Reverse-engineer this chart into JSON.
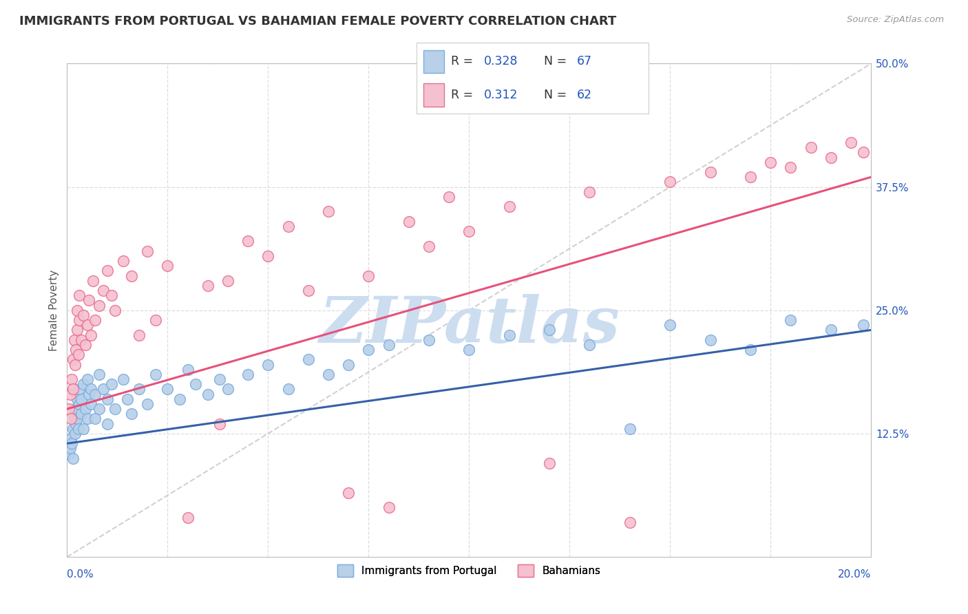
{
  "title": "IMMIGRANTS FROM PORTUGAL VS BAHAMIAN FEMALE POVERTY CORRELATION CHART",
  "source": "Source: ZipAtlas.com",
  "xmin": 0.0,
  "xmax": 20.0,
  "ymin": 0.0,
  "ymax": 50.0,
  "series1_name": "Immigrants from Portugal",
  "series1_color": "#b8d0e8",
  "series1_edge_color": "#7aade0",
  "series1_line_color": "#3560a8",
  "series1_R": "0.328",
  "series1_N": "67",
  "series2_name": "Bahamians",
  "series2_color": "#f5c0d0",
  "series2_edge_color": "#e87090",
  "series2_line_color": "#e8507a",
  "series2_R": "0.312",
  "series2_N": "62",
  "legend_color": "#2255bb",
  "legend_label_color": "#444444",
  "background_color": "#ffffff",
  "grid_color": "#dddddd",
  "grid_style": "--",
  "watermark": "ZIPatlas",
  "watermark_color": "#ccddf0",
  "title_color": "#333333",
  "source_color": "#999999",
  "ylabel": "Female Poverty",
  "ytick_color": "#2255bb",
  "xtick_color": "#2255bb",
  "blue_line_y0": 11.5,
  "blue_line_y1": 23.0,
  "pink_line_y0": 15.0,
  "pink_line_y1": 38.5,
  "diag_line_color": "#cccccc",
  "diag_y0": 0.0,
  "diag_y1": 50.0,
  "series1_x": [
    0.05,
    0.08,
    0.1,
    0.12,
    0.15,
    0.15,
    0.18,
    0.2,
    0.2,
    0.22,
    0.25,
    0.25,
    0.28,
    0.3,
    0.3,
    0.35,
    0.35,
    0.4,
    0.4,
    0.45,
    0.5,
    0.5,
    0.55,
    0.6,
    0.6,
    0.7,
    0.7,
    0.8,
    0.8,
    0.9,
    1.0,
    1.0,
    1.1,
    1.2,
    1.4,
    1.5,
    1.6,
    1.8,
    2.0,
    2.2,
    2.5,
    2.8,
    3.0,
    3.2,
    3.5,
    3.8,
    4.0,
    4.5,
    5.0,
    5.5,
    6.0,
    6.5,
    7.0,
    7.5,
    8.0,
    9.0,
    10.0,
    11.0,
    12.0,
    13.0,
    14.0,
    15.0,
    16.0,
    17.0,
    18.0,
    19.0,
    19.8
  ],
  "series1_y": [
    10.5,
    11.0,
    12.0,
    11.5,
    13.0,
    10.0,
    14.0,
    12.5,
    15.0,
    13.5,
    14.0,
    16.0,
    13.0,
    15.5,
    17.0,
    14.5,
    16.0,
    13.0,
    17.5,
    15.0,
    14.0,
    18.0,
    16.5,
    15.5,
    17.0,
    14.0,
    16.5,
    15.0,
    18.5,
    17.0,
    13.5,
    16.0,
    17.5,
    15.0,
    18.0,
    16.0,
    14.5,
    17.0,
    15.5,
    18.5,
    17.0,
    16.0,
    19.0,
    17.5,
    16.5,
    18.0,
    17.0,
    18.5,
    19.5,
    17.0,
    20.0,
    18.5,
    19.5,
    21.0,
    21.5,
    22.0,
    21.0,
    22.5,
    23.0,
    21.5,
    13.0,
    23.5,
    22.0,
    21.0,
    24.0,
    23.0,
    23.5
  ],
  "series2_x": [
    0.05,
    0.08,
    0.1,
    0.12,
    0.15,
    0.15,
    0.18,
    0.2,
    0.22,
    0.25,
    0.25,
    0.28,
    0.3,
    0.3,
    0.35,
    0.4,
    0.45,
    0.5,
    0.55,
    0.6,
    0.65,
    0.7,
    0.8,
    0.9,
    1.0,
    1.1,
    1.2,
    1.4,
    1.6,
    1.8,
    2.0,
    2.2,
    2.5,
    3.0,
    3.5,
    4.0,
    4.5,
    5.0,
    5.5,
    6.0,
    6.5,
    7.0,
    7.5,
    8.0,
    8.5,
    9.0,
    9.5,
    10.0,
    11.0,
    12.0,
    13.0,
    14.0,
    15.0,
    16.0,
    17.0,
    17.5,
    18.0,
    18.5,
    19.0,
    19.5,
    19.8,
    3.8
  ],
  "series2_y": [
    15.0,
    16.5,
    14.0,
    18.0,
    20.0,
    17.0,
    22.0,
    19.5,
    21.0,
    23.0,
    25.0,
    20.5,
    24.0,
    26.5,
    22.0,
    24.5,
    21.5,
    23.5,
    26.0,
    22.5,
    28.0,
    24.0,
    25.5,
    27.0,
    29.0,
    26.5,
    25.0,
    30.0,
    28.5,
    22.5,
    31.0,
    24.0,
    29.5,
    4.0,
    27.5,
    28.0,
    32.0,
    30.5,
    33.5,
    27.0,
    35.0,
    6.5,
    28.5,
    5.0,
    34.0,
    31.5,
    36.5,
    33.0,
    35.5,
    9.5,
    37.0,
    3.5,
    38.0,
    39.0,
    38.5,
    40.0,
    39.5,
    41.5,
    40.5,
    42.0,
    41.0,
    13.5
  ]
}
